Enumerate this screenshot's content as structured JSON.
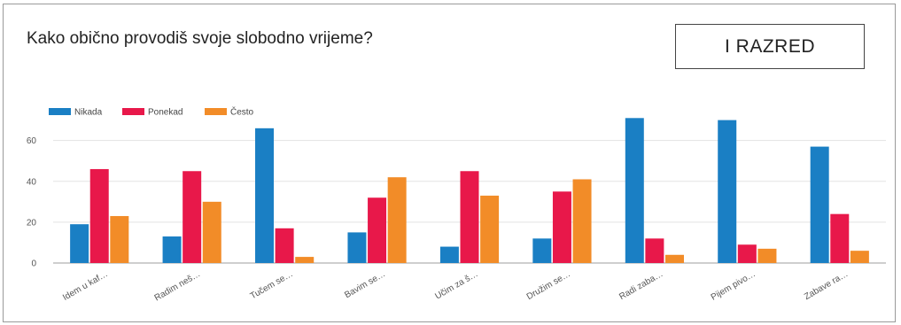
{
  "title": "Kako obično provodiš svoje slobodno vrijeme?",
  "badge": "I RAZRED",
  "chart_data": {
    "type": "bar",
    "title": "Kako obično provodiš svoje slobodno vrijeme?",
    "xlabel": "",
    "ylabel": "",
    "ylim": [
      0,
      72
    ],
    "yticks": [
      0,
      20,
      40,
      60
    ],
    "grid": true,
    "legend_position": "top-left",
    "categories": [
      "Idem u kaf…",
      "Radim neš…",
      "Tučem se…",
      "Bavim se…",
      "Učim za š…",
      "Družim se…",
      "Radi zaba…",
      "Pijem pivo…",
      "Zabave ra…"
    ],
    "series": [
      {
        "name": "Nikada",
        "color": "#1a7fc4",
        "values": [
          19,
          13,
          66,
          15,
          8,
          12,
          71,
          70,
          57
        ]
      },
      {
        "name": "Ponekad",
        "color": "#e8184a",
        "values": [
          46,
          45,
          17,
          32,
          45,
          35,
          12,
          9,
          24
        ]
      },
      {
        "name": "Često",
        "color": "#f28c28",
        "values": [
          23,
          30,
          3,
          42,
          33,
          41,
          4,
          7,
          6
        ]
      }
    ]
  }
}
